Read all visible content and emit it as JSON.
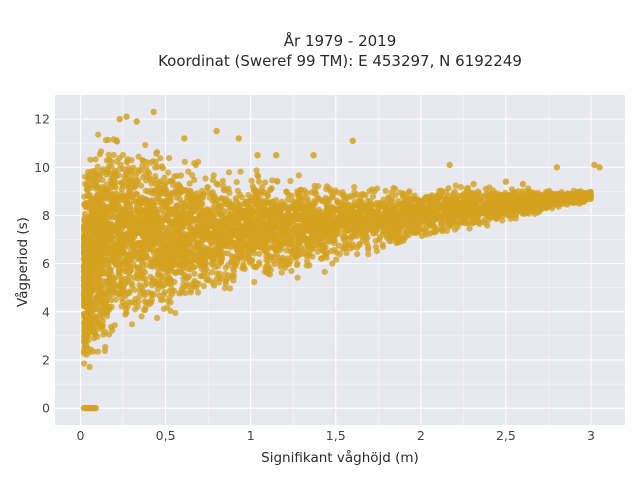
{
  "chart_data": {
    "type": "scatter",
    "title": "År 1979 - 2019",
    "subtitle": "Koordinat (Sweref 99 TM): E 453297, N 6192249",
    "xlabel": "Signifikant våghöjd (m)",
    "ylabel": "Vågperiod (s)",
    "xlim": [
      -0.15,
      3.2
    ],
    "ylim": [
      -0.7,
      13.0
    ],
    "x_ticks": [
      0,
      0.5,
      1,
      1.5,
      2,
      2.5,
      3
    ],
    "x_tick_labels": [
      "0",
      "0,5",
      "1",
      "1,5",
      "2",
      "2,5",
      "3"
    ],
    "y_ticks": [
      0,
      2,
      4,
      6,
      8,
      10,
      12
    ],
    "y_tick_labels": [
      "0",
      "2",
      "4",
      "6",
      "8",
      "10",
      "12"
    ],
    "grid": true,
    "legend": false,
    "colors": {
      "marker": "#d4a21f",
      "plot_background": "#e8e8f0",
      "grid": "#ffffff"
    },
    "density_envelope": {
      "x": [
        0.02,
        0.05,
        0.1,
        0.2,
        0.3,
        0.5,
        0.75,
        1.0,
        1.25,
        1.5,
        1.75,
        2.0,
        2.25,
        2.5,
        2.75,
        3.0
      ],
      "y_low": [
        1.1,
        1.3,
        1.7,
        2.2,
        2.7,
        3.4,
        4.1,
        4.7,
        5.2,
        5.7,
        6.2,
        6.7,
        7.2,
        7.6,
        8.1,
        8.6
      ],
      "y_high": [
        9.5,
        10.5,
        11.5,
        11.9,
        11.5,
        10.8,
        10.2,
        9.9,
        9.7,
        9.5,
        9.3,
        9.3,
        9.3,
        9.2,
        9.1,
        9.0
      ]
    },
    "series": [
      {
        "points": [
          [
            0.02,
            0
          ],
          [
            0.03,
            0
          ],
          [
            0.04,
            0
          ],
          [
            0.05,
            0
          ],
          [
            0.06,
            0
          ],
          [
            0.07,
            0
          ],
          [
            0.08,
            0
          ],
          [
            0.09,
            0
          ],
          [
            0.23,
            12.0
          ],
          [
            0.27,
            12.1
          ],
          [
            0.33,
            11.9
          ],
          [
            0.43,
            12.3
          ],
          [
            0.61,
            11.2
          ],
          [
            0.8,
            11.5
          ],
          [
            0.93,
            11.2
          ],
          [
            1.04,
            10.5
          ],
          [
            1.15,
            10.5
          ],
          [
            1.37,
            10.5
          ],
          [
            1.6,
            11.1
          ],
          [
            2.17,
            10.1
          ],
          [
            2.31,
            9.3
          ],
          [
            2.5,
            9.4
          ],
          [
            2.6,
            9.3
          ],
          [
            2.8,
            10.0
          ],
          [
            2.94,
            9.0
          ],
          [
            2.97,
            8.8
          ],
          [
            3.02,
            10.1
          ],
          [
            3.05,
            10.0
          ]
        ]
      }
    ]
  }
}
